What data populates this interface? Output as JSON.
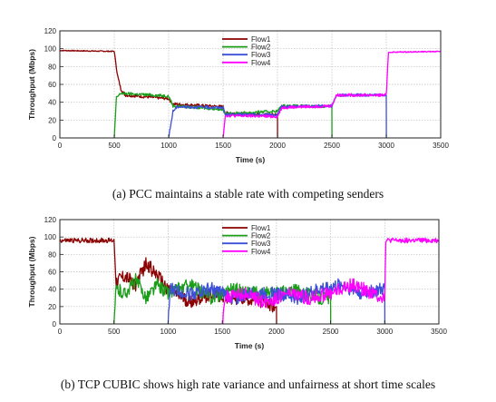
{
  "captions": {
    "a": "(a) PCC maintains a stable rate with competing senders",
    "b": "(b) TCP CUBIC shows high rate variance and unfairness at short time scales"
  },
  "chart_data": [
    {
      "type": "line",
      "xlabel": "Time (s)",
      "ylabel": "Throughput (Mbps)",
      "xlim": [
        0,
        3500
      ],
      "ylim": [
        0,
        120
      ],
      "xticks": [
        0,
        500,
        1000,
        1500,
        2000,
        2500,
        3000,
        3500
      ],
      "yticks": [
        0,
        20,
        40,
        60,
        80,
        100,
        120
      ],
      "grid": true,
      "legend_position": "top-center",
      "series": [
        {
          "name": "Flow1",
          "color": "#8b0000",
          "points": [
            [
              0,
              98
            ],
            [
              500,
              97
            ],
            [
              530,
              70
            ],
            [
              560,
              55
            ],
            [
              600,
              48
            ],
            [
              1000,
              44
            ],
            [
              1040,
              38
            ],
            [
              1500,
              35
            ],
            [
              1520,
              28
            ],
            [
              2000,
              26
            ],
            [
              2001,
              0
            ]
          ]
        },
        {
          "name": "Flow2",
          "color": "#1a9e1a",
          "points": [
            [
              500,
              0
            ],
            [
              520,
              45
            ],
            [
              560,
              50
            ],
            [
              1000,
              47
            ],
            [
              1040,
              36
            ],
            [
              1500,
              32
            ],
            [
              1520,
              27
            ],
            [
              2000,
              30
            ],
            [
              2040,
              36
            ],
            [
              2500,
              35
            ],
            [
              2501,
              0
            ]
          ]
        },
        {
          "name": "Flow3",
          "color": "#3b4fd8",
          "points": [
            [
              1000,
              0
            ],
            [
              1040,
              30
            ],
            [
              1080,
              35
            ],
            [
              1500,
              34
            ],
            [
              1520,
              26
            ],
            [
              2000,
              26
            ],
            [
              2040,
              35
            ],
            [
              2500,
              36
            ],
            [
              2540,
              48
            ],
            [
              3000,
              48
            ],
            [
              3001,
              0
            ]
          ]
        },
        {
          "name": "Flow4",
          "color": "#ff00ff",
          "points": [
            [
              1500,
              0
            ],
            [
              1520,
              25
            ],
            [
              2000,
              24
            ],
            [
              2040,
              34
            ],
            [
              2500,
              36
            ],
            [
              2540,
              48
            ],
            [
              3000,
              48
            ],
            [
              3020,
              96
            ],
            [
              3500,
              97
            ]
          ]
        }
      ]
    },
    {
      "type": "line",
      "xlabel": "Time (s)",
      "ylabel": "Throughput (Mbps)",
      "xlim": [
        0,
        3500
      ],
      "ylim": [
        0,
        120
      ],
      "xticks": [
        0,
        500,
        1000,
        1500,
        2000,
        2500,
        3000,
        3500
      ],
      "yticks": [
        0,
        20,
        40,
        60,
        80,
        100,
        120
      ],
      "grid": true,
      "legend_position": "top-center",
      "series": [
        {
          "name": "Flow1",
          "color": "#8b0000",
          "points": [
            [
              0,
              96
            ],
            [
              500,
              96
            ],
            [
              520,
              50
            ],
            [
              600,
              55
            ],
            [
              700,
              45
            ],
            [
              800,
              70
            ],
            [
              900,
              55
            ],
            [
              1000,
              40
            ],
            [
              1200,
              25
            ],
            [
              1400,
              35
            ],
            [
              1600,
              30
            ],
            [
              1800,
              28
            ],
            [
              2000,
              20
            ],
            [
              2001,
              0
            ]
          ]
        },
        {
          "name": "Flow2",
          "color": "#1a9e1a",
          "points": [
            [
              500,
              0
            ],
            [
              520,
              40
            ],
            [
              600,
              35
            ],
            [
              700,
              50
            ],
            [
              800,
              30
            ],
            [
              900,
              45
            ],
            [
              1000,
              35
            ],
            [
              1200,
              45
            ],
            [
              1400,
              30
            ],
            [
              1600,
              40
            ],
            [
              1800,
              35
            ],
            [
              2000,
              35
            ],
            [
              2200,
              38
            ],
            [
              2400,
              30
            ],
            [
              2500,
              30
            ],
            [
              2501,
              0
            ]
          ]
        },
        {
          "name": "Flow3",
          "color": "#3b4fd8",
          "points": [
            [
              1000,
              0
            ],
            [
              1020,
              40
            ],
            [
              1200,
              35
            ],
            [
              1400,
              40
            ],
            [
              1600,
              30
            ],
            [
              1800,
              35
            ],
            [
              2000,
              35
            ],
            [
              2200,
              30
            ],
            [
              2400,
              40
            ],
            [
              2600,
              45
            ],
            [
              2800,
              35
            ],
            [
              3000,
              40
            ],
            [
              3001,
              0
            ]
          ]
        },
        {
          "name": "Flow4",
          "color": "#ff00ff",
          "points": [
            [
              1500,
              0
            ],
            [
              1520,
              30
            ],
            [
              1700,
              35
            ],
            [
              1900,
              25
            ],
            [
              2100,
              35
            ],
            [
              2300,
              30
            ],
            [
              2500,
              35
            ],
            [
              2700,
              45
            ],
            [
              2900,
              35
            ],
            [
              3000,
              30
            ],
            [
              3010,
              96
            ],
            [
              3500,
              96
            ]
          ]
        }
      ]
    }
  ]
}
